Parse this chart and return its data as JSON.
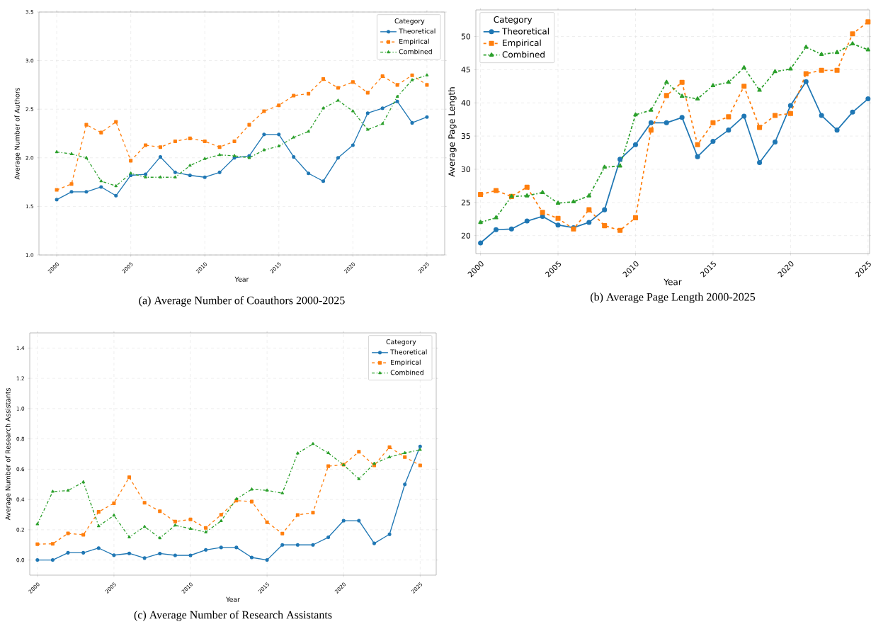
{
  "chart_data": [
    {
      "type": "line",
      "title": "(a) Average Number of Coauthors 2000-2025",
      "xlabel": "Year",
      "ylabel": "Average Number of Authors",
      "legend_title": "Category",
      "legend": "top right",
      "grid": true,
      "x": [
        2000,
        2001,
        2002,
        2003,
        2004,
        2005,
        2006,
        2007,
        2008,
        2009,
        2010,
        2011,
        2012,
        2013,
        2014,
        2015,
        2016,
        2017,
        2018,
        2019,
        2020,
        2021,
        2022,
        2023,
        2024,
        2025
      ],
      "xlim": [
        1998.8,
        2026.2
      ],
      "xticks": [
        2000,
        2005,
        2010,
        2015,
        2020,
        2025
      ],
      "ylim": [
        1.0,
        3.5
      ],
      "yticks": [
        {
          "value": 1.0,
          "label": "1.0"
        },
        {
          "value": 1.5,
          "label": "1.5"
        },
        {
          "value": 2.0,
          "label": "2.0"
        },
        {
          "value": 2.5,
          "label": "2.5"
        },
        {
          "value": 3.0,
          "label": "3.0"
        },
        {
          "value": 3.5,
          "label": "3.5"
        }
      ],
      "series": [
        {
          "name": "Theoretical",
          "color": "#1f77b4",
          "marker": "circle",
          "line_style": "solid",
          "values": [
            1.57,
            1.65,
            1.65,
            1.7,
            1.61,
            1.82,
            1.83,
            2.01,
            1.85,
            1.82,
            1.8,
            1.85,
            2.0,
            2.02,
            2.24,
            2.24,
            2.01,
            1.84,
            1.76,
            2.0,
            2.13,
            2.46,
            2.51,
            2.58,
            2.36,
            2.42
          ]
        },
        {
          "name": "Empirical",
          "color": "#ff7f0e",
          "marker": "square",
          "line_style": "dashed",
          "values": [
            1.67,
            1.73,
            2.34,
            2.26,
            2.37,
            1.97,
            2.13,
            2.11,
            2.17,
            2.2,
            2.17,
            2.11,
            2.17,
            2.34,
            2.48,
            2.54,
            2.64,
            2.66,
            2.81,
            2.72,
            2.78,
            2.67,
            2.84,
            2.75,
            2.85,
            2.75
          ]
        },
        {
          "name": "Combined",
          "color": "#2ca02c",
          "marker": "triangle",
          "line_style": "dashdot",
          "values": [
            2.06,
            2.04,
            2.0,
            1.76,
            1.71,
            1.84,
            1.8,
            1.8,
            1.8,
            1.92,
            1.99,
            2.03,
            2.02,
            2.0,
            2.08,
            2.12,
            2.21,
            2.27,
            2.51,
            2.59,
            2.48,
            2.29,
            2.35,
            2.63,
            2.8,
            2.85
          ]
        }
      ]
    },
    {
      "type": "line",
      "title": "(b) Average Page Length 2000-2025",
      "xlabel": "Year",
      "ylabel": "Average Page Length",
      "legend_title": "Category",
      "legend": "top left",
      "grid": true,
      "x": [
        2000,
        2001,
        2002,
        2003,
        2004,
        2005,
        2006,
        2007,
        2008,
        2009,
        2010,
        2011,
        2012,
        2013,
        2014,
        2015,
        2016,
        2017,
        2018,
        2019,
        2020,
        2021,
        2022,
        2023,
        2024,
        2025
      ],
      "xlim": [
        1999.7,
        2025.1
      ],
      "xticks": [
        2000,
        2005,
        2010,
        2015,
        2020,
        2025
      ],
      "ylim": [
        17.3,
        54
      ],
      "yticks": [
        20,
        25,
        30,
        35,
        40,
        45,
        50
      ],
      "series": [
        {
          "name": "Theoretical",
          "color": "#1f77b4",
          "marker": "circle",
          "line_style": "solid",
          "values": [
            18.9,
            20.9,
            21.0,
            22.2,
            22.9,
            21.6,
            21.2,
            22.0,
            23.9,
            31.5,
            33.7,
            37.0,
            37.0,
            37.8,
            31.9,
            34.2,
            35.9,
            38.0,
            31.0,
            34.1,
            39.6,
            43.2,
            38.1,
            35.9,
            38.6,
            40.6
          ]
        },
        {
          "name": "Empirical",
          "color": "#ff7f0e",
          "marker": "square",
          "line_style": "dashed",
          "values": [
            26.2,
            26.8,
            25.9,
            27.3,
            23.5,
            22.6,
            21.0,
            23.9,
            21.5,
            20.8,
            22.7,
            35.9,
            41.1,
            43.1,
            33.7,
            37.0,
            37.9,
            42.5,
            36.3,
            38.1,
            38.4,
            44.4,
            44.9,
            44.9,
            50.4,
            52.2
          ]
        },
        {
          "name": "Combined",
          "color": "#2ca02c",
          "marker": "triangle",
          "line_style": "dashdot",
          "values": [
            22.0,
            22.7,
            25.9,
            26.0,
            26.5,
            24.9,
            25.1,
            26.0,
            30.3,
            30.5,
            38.2,
            38.9,
            43.1,
            41.0,
            40.6,
            42.6,
            43.1,
            45.3,
            41.9,
            44.7,
            45.1,
            48.4,
            47.3,
            47.6,
            48.9,
            48.0
          ]
        }
      ]
    },
    {
      "type": "line",
      "title": "(c) Average Number of Research Assistants",
      "xlabel": "Year",
      "ylabel": "Average Number of Research Assistants",
      "legend_title": "Category",
      "legend": "top right",
      "grid": true,
      "x": [
        2000,
        2001,
        2002,
        2003,
        2004,
        2005,
        2006,
        2007,
        2008,
        2009,
        2010,
        2011,
        2012,
        2013,
        2014,
        2015,
        2016,
        2017,
        2018,
        2019,
        2020,
        2021,
        2022,
        2023,
        2024,
        2025
      ],
      "xlim": [
        1999.5,
        2026.05
      ],
      "xticks": [
        2000,
        2005,
        2010,
        2015,
        2020,
        2025
      ],
      "ylim": [
        -0.1,
        1.5
      ],
      "yticks": [
        {
          "value": 0.0,
          "label": "0.0"
        },
        {
          "value": 0.2,
          "label": "0.2"
        },
        {
          "value": 0.4,
          "label": "0.4"
        },
        {
          "value": 0.6,
          "label": "0.6"
        },
        {
          "value": 0.8,
          "label": "0.8"
        },
        {
          "value": 1.0,
          "label": "1.0"
        },
        {
          "value": 1.2,
          "label": "1.2"
        },
        {
          "value": 1.4,
          "label": "1.4"
        }
      ],
      "series": [
        {
          "name": "Theoretical",
          "color": "#1f77b4",
          "marker": "circle",
          "line_style": "solid",
          "values": [
            0.0,
            0.0,
            0.048,
            0.048,
            0.079,
            0.032,
            0.044,
            0.013,
            0.043,
            0.031,
            0.031,
            0.067,
            0.083,
            0.083,
            0.017,
            0.0,
            0.1,
            0.1,
            0.1,
            0.15,
            0.26,
            0.26,
            0.11,
            0.17,
            0.5,
            0.75
          ]
        },
        {
          "name": "Empirical",
          "color": "#ff7f0e",
          "marker": "square",
          "line_style": "dashed",
          "values": [
            0.105,
            0.107,
            0.176,
            0.167,
            0.318,
            0.375,
            0.547,
            0.378,
            0.322,
            0.254,
            0.268,
            0.212,
            0.299,
            0.393,
            0.386,
            0.25,
            0.175,
            0.298,
            0.313,
            0.62,
            0.63,
            0.715,
            0.625,
            0.745,
            0.68,
            0.625
          ]
        },
        {
          "name": "Combined",
          "color": "#2ca02c",
          "marker": "triangle",
          "line_style": "dashdot",
          "values": [
            0.237,
            0.452,
            0.459,
            0.515,
            0.224,
            0.295,
            0.151,
            0.22,
            0.145,
            0.229,
            0.207,
            0.184,
            0.258,
            0.403,
            0.467,
            0.46,
            0.442,
            0.705,
            0.767,
            0.707,
            0.628,
            0.535,
            0.637,
            0.68,
            0.707,
            0.728
          ]
        }
      ]
    }
  ]
}
